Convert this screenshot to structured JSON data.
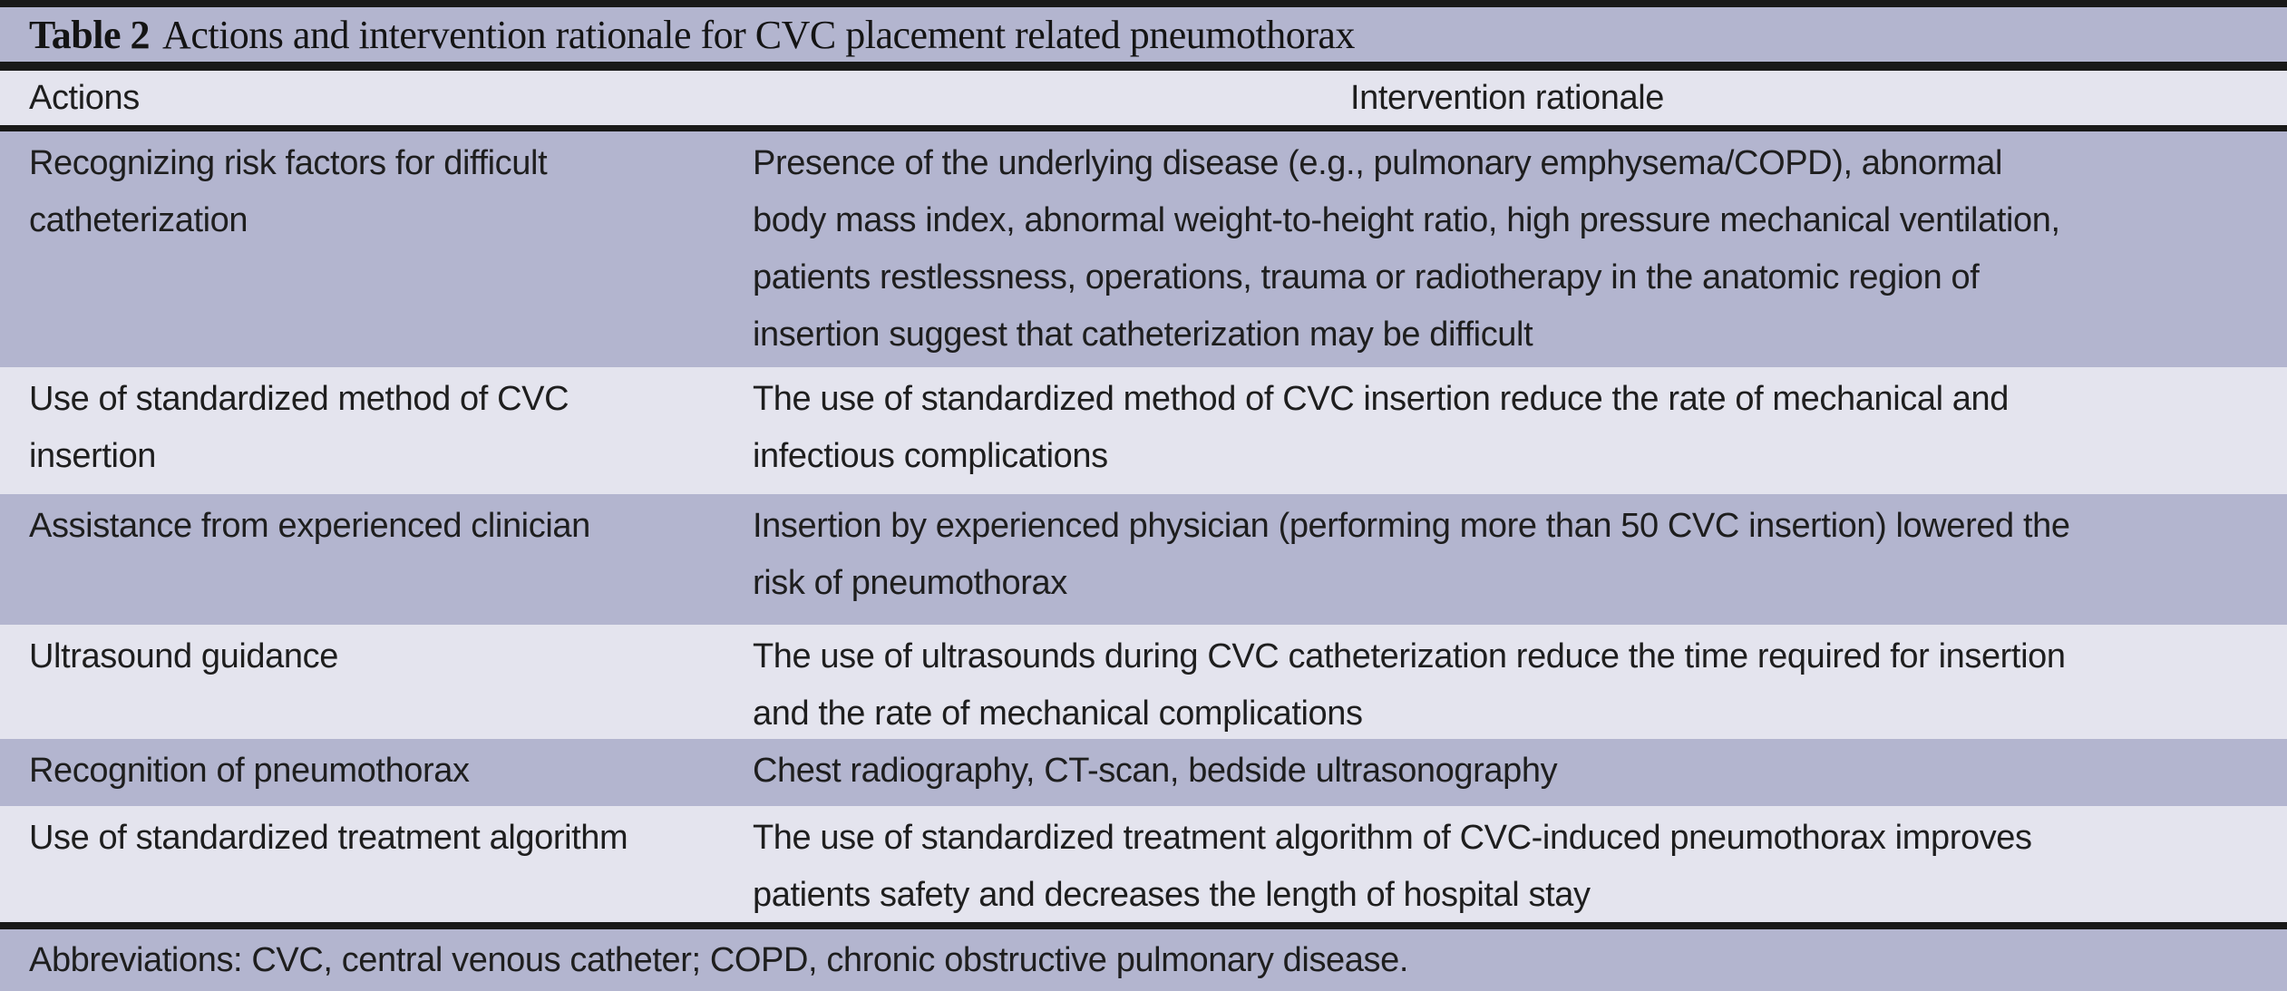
{
  "title": {
    "label": "Table 2",
    "text": "Actions and intervention rationale for CVC placement related pneumothorax"
  },
  "columns": {
    "actions": "Actions",
    "rationale": "Intervention rationale"
  },
  "rows": [
    {
      "action": "Recognizing risk factors for difficult\ncatheterization",
      "rationale": "Presence of the underlying disease (e.g., pulmonary emphysema/COPD), abnormal\nbody mass index, abnormal weight-to-height ratio, high pressure mechanical ventilation,\npatients restlessness, operations, trauma or radiotherapy in the anatomic region of\ninsertion suggest that catheterization may be difficult"
    },
    {
      "action": "Use of standardized method of CVC\ninsertion",
      "rationale": "The use of standardized method of CVC insertion reduce the rate of mechanical and\ninfectious complications"
    },
    {
      "action": "Assistance from experienced clinician",
      "rationale": "Insertion by experienced physician (performing more than 50 CVC insertion) lowered the\nrisk of pneumothorax"
    },
    {
      "action": "Ultrasound guidance",
      "rationale": "The use of ultrasounds during CVC catheterization reduce the time required for insertion\nand the rate of mechanical complications"
    },
    {
      "action": "Recognition of pneumothorax",
      "rationale": "Chest radiography, CT-scan, bedside ultrasonography"
    },
    {
      "action": "Use of standardized treatment algorithm",
      "rationale": "The use of standardized treatment algorithm of CVC-induced pneumothorax improves\npatients safety and decreases the length of hospital stay"
    }
  ],
  "footnote": "Abbreviations: CVC, central venous catheter; COPD, chronic obstructive pulmonary disease.",
  "colors": {
    "band_purple": "#b3b5cf",
    "band_light": "#e4e4ee",
    "rule_black": "#191919",
    "text": "#1e1e1e"
  }
}
